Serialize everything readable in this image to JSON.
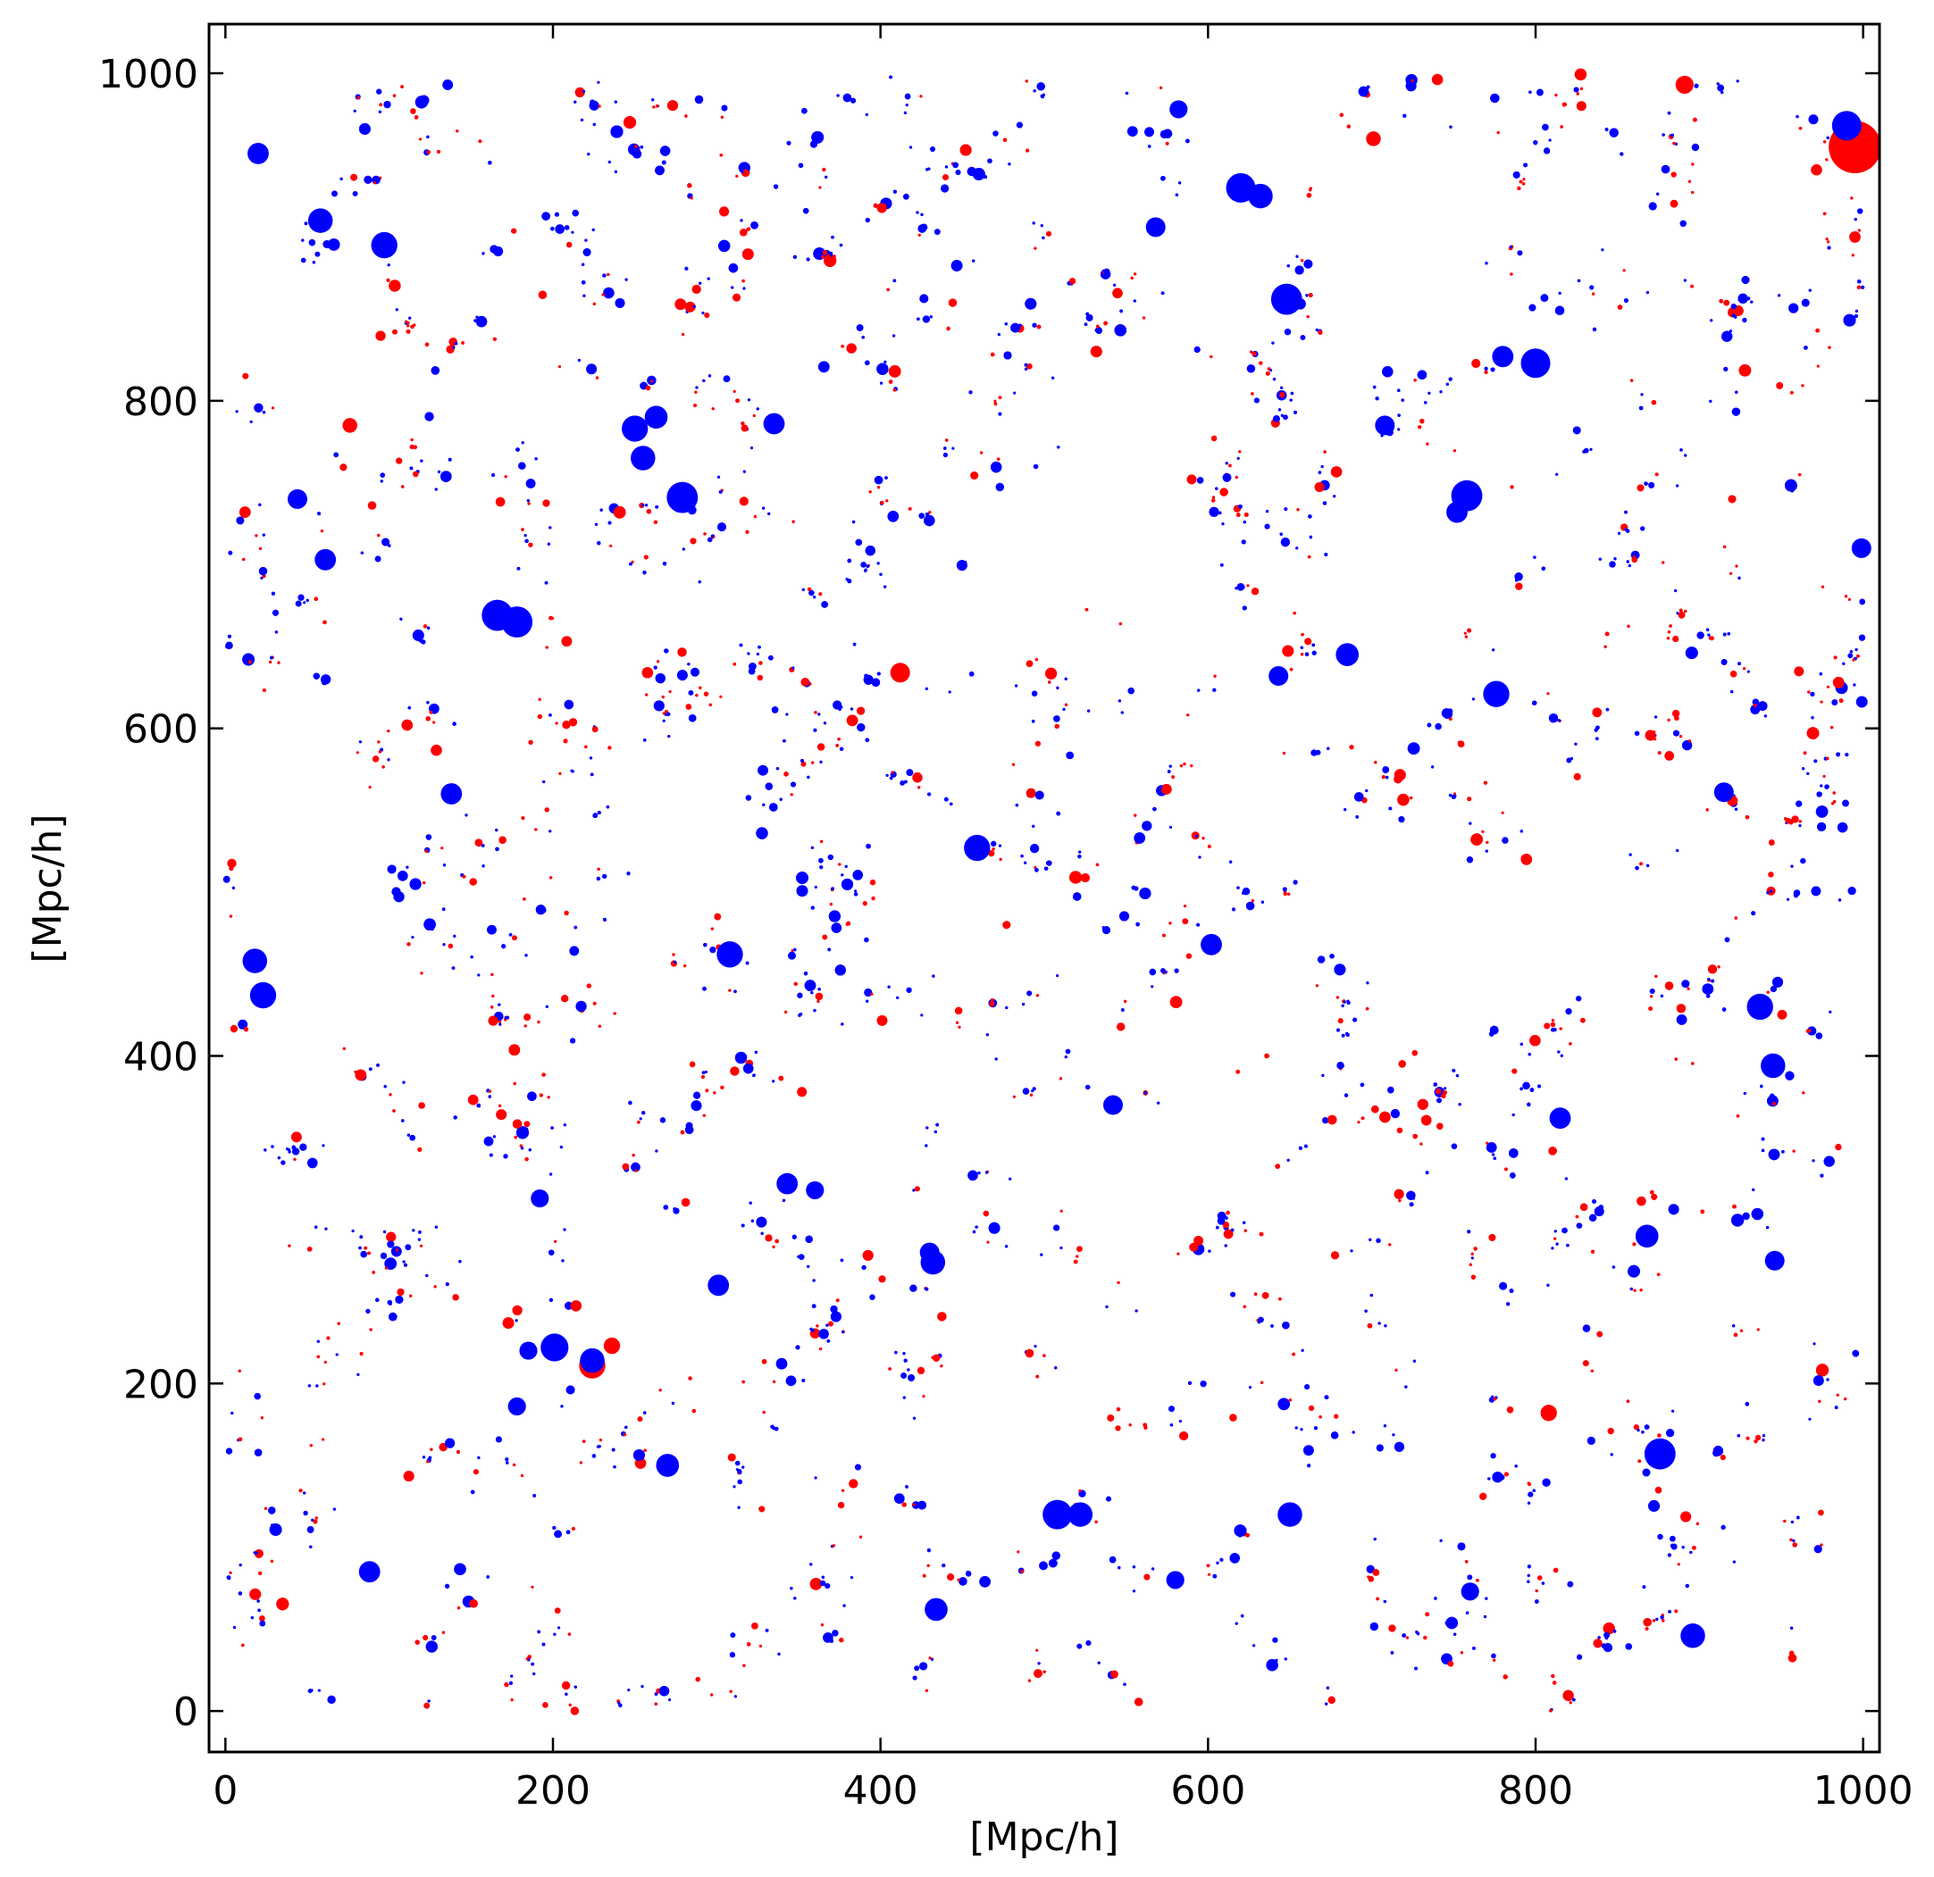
{
  "chart_data": {
    "type": "scatter",
    "title": "",
    "xlabel": "[Mpc/h]",
    "ylabel": "[Mpc/h]",
    "xlim": [
      -10,
      1010
    ],
    "ylim": [
      -25,
      1030
    ],
    "xticks": [
      0,
      200,
      400,
      600,
      800,
      1000
    ],
    "yticks": [
      0,
      200,
      400,
      600,
      800,
      1000
    ],
    "xtick_labels": [
      "0",
      "200",
      "400",
      "600",
      "800",
      "1000"
    ],
    "ytick_labels": [
      "0",
      "200",
      "400",
      "600",
      "800",
      "1000"
    ],
    "grid": false,
    "legend": "none",
    "background_field": "many small blue and red points tracing filaments across the full box",
    "series": [
      {
        "color": "#ff0000",
        "points": [
          [
            995,
            955,
            3.2
          ],
          [
            224,
            211,
            1.6
          ],
          [
            412,
            634,
            1.2
          ],
          [
            891,
            993,
            1.1
          ],
          [
            808,
            182,
            1.0
          ],
          [
            76,
            785,
            0.9
          ],
          [
            701,
            960,
            0.9
          ],
          [
            236,
            223,
            1.0
          ],
          [
            995,
            900,
            0.7
          ],
          [
            985,
            628,
            0.7
          ],
          [
            12,
            732,
            0.7
          ],
          [
            590,
            752,
            0.6
          ],
          [
            352,
            378,
            0.6
          ],
          [
            828,
            980,
            0.6
          ],
          [
            477,
            480,
            0.5
          ],
          [
            920,
            740,
            0.5
          ]
        ]
      },
      {
        "color": "#0000ff",
        "points": [
          [
            990,
            968,
            1.8
          ],
          [
            648,
            862,
            1.9
          ],
          [
            620,
            930,
            1.8
          ],
          [
            632,
            925,
            1.5
          ],
          [
            166,
            669,
            1.9
          ],
          [
            178,
            665,
            1.9
          ],
          [
            279,
            741,
            1.9
          ],
          [
            255,
            765,
            1.5
          ],
          [
            250,
            783,
            1.6
          ],
          [
            263,
            790,
            1.4
          ],
          [
            800,
            823,
            1.8
          ],
          [
            780,
            827,
            1.3
          ],
          [
            758,
            742,
            1.9
          ],
          [
            752,
            732,
            1.3
          ],
          [
            876,
            157,
            1.9
          ],
          [
            508,
            120,
            1.8
          ],
          [
            522,
            120,
            1.5
          ],
          [
            201,
            222,
            1.7
          ],
          [
            224,
            214,
            1.5
          ],
          [
            308,
            462,
            1.6
          ],
          [
            58,
            910,
            1.5
          ],
          [
            97,
            895,
            1.6
          ],
          [
            20,
            951,
            1.3
          ],
          [
            23,
            437,
            1.6
          ],
          [
            18,
            458,
            1.5
          ],
          [
            937,
            430,
            1.6
          ],
          [
            945,
            394,
            1.5
          ],
          [
            868,
            290,
            1.4
          ],
          [
            776,
            621,
            1.6
          ],
          [
            685,
            645,
            1.4
          ],
          [
            459,
            527,
            1.6
          ],
          [
            432,
            274,
            1.5
          ],
          [
            270,
            150,
            1.4
          ],
          [
            650,
            120,
            1.5
          ],
          [
            896,
            46,
            1.5
          ],
          [
            434,
            62,
            1.4
          ],
          [
            301,
            260,
            1.3
          ],
          [
            343,
            322,
            1.3
          ],
          [
            335,
            786,
            1.3
          ],
          [
            138,
            560,
            1.3
          ],
          [
            602,
            468,
            1.3
          ],
          [
            815,
            362,
            1.3
          ],
          [
            708,
            785,
            1.2
          ],
          [
            61,
            703,
            1.3
          ],
          [
            88,
            85,
            1.3
          ],
          [
            542,
            370,
            1.2
          ],
          [
            915,
            561,
            1.2
          ],
          [
            643,
            632,
            1.2
          ],
          [
            192,
            313,
            1.1
          ],
          [
            568,
            906,
            1.2
          ],
          [
            582,
            978,
            1.1
          ],
          [
            44,
            740,
            1.2
          ],
          [
            430,
            280,
            1.2
          ],
          [
            360,
            318,
            1.1
          ],
          [
            178,
            186,
            1.1
          ],
          [
            185,
            220,
            1.1
          ],
          [
            946,
            275,
            1.2
          ],
          [
            760,
            73,
            1.1
          ],
          [
            580,
            80,
            1.1
          ],
          [
            999,
            710,
            1.2
          ]
        ]
      }
    ]
  }
}
